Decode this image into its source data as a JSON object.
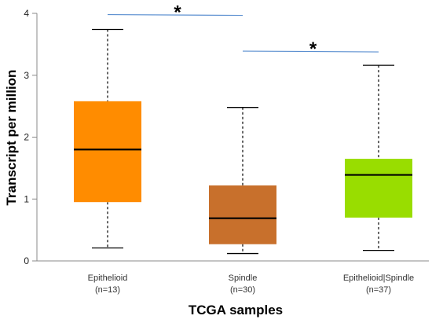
{
  "chart_data": {
    "type": "box",
    "title": "",
    "xlabel": "TCGA samples",
    "ylabel": "Transcript per million",
    "ylim": [
      0,
      4
    ],
    "yticks": [
      "0",
      "1",
      "2",
      "3",
      "4"
    ],
    "grid": false,
    "legend": "none",
    "categories": [
      {
        "name": "Epithelioid",
        "n_label": "(n=13)",
        "color": "#ff8c00",
        "min": 0.21,
        "q1": 0.95,
        "median": 1.8,
        "q3": 2.58,
        "max": 3.74
      },
      {
        "name": "Spindle",
        "n_label": "(n=30)",
        "color": "#c8702c",
        "min": 0.12,
        "q1": 0.27,
        "median": 0.69,
        "q3": 1.22,
        "max": 2.48
      },
      {
        "name": "Epithelioid|Spindle",
        "n_label": "(n=37)",
        "color": "#99dd00",
        "min": 0.17,
        "q1": 0.7,
        "median": 1.39,
        "q3": 1.65,
        "max": 3.16
      }
    ],
    "significance": [
      {
        "from": 0,
        "to": 1,
        "y": 3.98,
        "label": "*"
      },
      {
        "from": 1,
        "to": 2,
        "y": 3.39,
        "label": "*"
      }
    ],
    "sig_line_color": "#5b8fd0"
  }
}
